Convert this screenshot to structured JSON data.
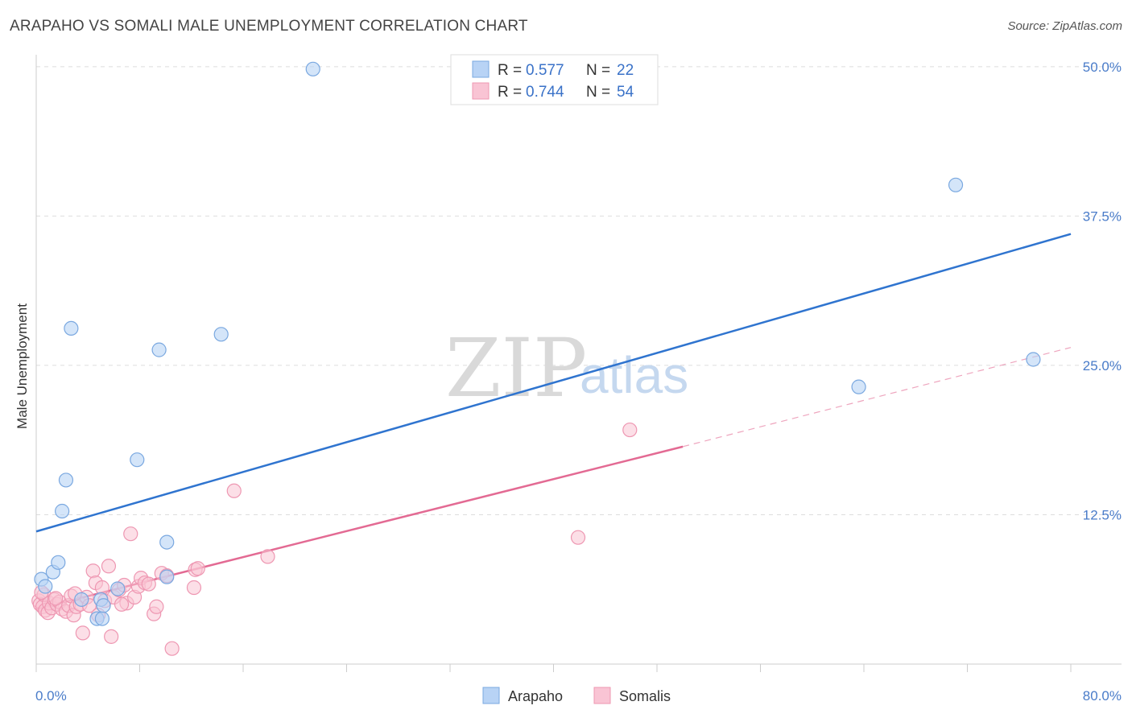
{
  "title": "ARAPAHO VS SOMALI MALE UNEMPLOYMENT CORRELATION CHART",
  "source": "Source: ZipAtlas.com",
  "colors": {
    "arapaho_fill": "#b8d3f5",
    "arapaho_stroke": "#7aa8e0",
    "arapaho_line": "#2f74cf",
    "somalis_fill": "#f9c4d4",
    "somalis_stroke": "#ee97b2",
    "somalis_line": "#e36a93",
    "axis_label": "#4a7cc9",
    "grid": "#dddddd"
  },
  "legend": {
    "rows": [
      {
        "r_label": "R = ",
        "r_value": "0.577",
        "n_label": "N = ",
        "n_value": "22"
      },
      {
        "r_label": "R = ",
        "r_value": "0.744",
        "n_label": "N = ",
        "n_value": "54"
      }
    ]
  },
  "watermark": {
    "zip": "ZIP",
    "atlas": "atlas"
  },
  "chart_data": {
    "type": "scatter",
    "title": "ARAPAHO VS SOMALI MALE UNEMPLOYMENT CORRELATION CHART",
    "xlabel": "",
    "ylabel": "Male Unemployment",
    "xlim": [
      0,
      80
    ],
    "ylim": [
      0,
      51
    ],
    "x_tick_labels": [
      "0.0%",
      "80.0%"
    ],
    "y_ticks": [
      12.5,
      25.0,
      37.5,
      50.0
    ],
    "y_tick_labels": [
      "12.5%",
      "25.0%",
      "37.5%",
      "50.0%"
    ],
    "grid": true,
    "series": [
      {
        "name": "Arapaho",
        "r": 0.577,
        "n": 22,
        "points": [
          [
            0.4,
            7.1
          ],
          [
            0.7,
            6.5
          ],
          [
            1.3,
            7.7
          ],
          [
            1.7,
            8.5
          ],
          [
            2.0,
            12.8
          ],
          [
            2.3,
            15.4
          ],
          [
            2.7,
            28.1
          ],
          [
            3.5,
            5.4
          ],
          [
            4.7,
            3.8
          ],
          [
            5.0,
            5.4
          ],
          [
            5.1,
            3.8
          ],
          [
            5.2,
            4.9
          ],
          [
            6.3,
            6.3
          ],
          [
            7.8,
            17.1
          ],
          [
            9.5,
            26.3
          ],
          [
            10.1,
            10.2
          ],
          [
            10.1,
            7.3
          ],
          [
            14.3,
            27.6
          ],
          [
            21.4,
            49.8
          ],
          [
            63.6,
            23.2
          ],
          [
            71.1,
            40.1
          ],
          [
            77.1,
            25.5
          ]
        ],
        "trend": {
          "x": [
            0,
            80
          ],
          "y": [
            11.1,
            36.0
          ]
        }
      },
      {
        "name": "Somalis",
        "r": 0.744,
        "n": 54,
        "points": [
          [
            0.2,
            5.3
          ],
          [
            0.3,
            5.0
          ],
          [
            0.5,
            4.8
          ],
          [
            0.6,
            5.8
          ],
          [
            0.7,
            4.5
          ],
          [
            0.9,
            4.3
          ],
          [
            1.0,
            5.1
          ],
          [
            1.2,
            4.7
          ],
          [
            1.4,
            5.4
          ],
          [
            1.6,
            5.0
          ],
          [
            1.8,
            5.2
          ],
          [
            2.0,
            4.6
          ],
          [
            2.3,
            4.4
          ],
          [
            2.5,
            4.9
          ],
          [
            2.7,
            5.7
          ],
          [
            2.9,
            4.1
          ],
          [
            3.1,
            4.8
          ],
          [
            3.4,
            5.0
          ],
          [
            3.6,
            2.6
          ],
          [
            3.9,
            5.6
          ],
          [
            4.1,
            4.9
          ],
          [
            4.4,
            7.8
          ],
          [
            4.6,
            6.8
          ],
          [
            4.8,
            4.1
          ],
          [
            5.1,
            6.4
          ],
          [
            5.3,
            5.3
          ],
          [
            5.6,
            8.2
          ],
          [
            5.8,
            2.3
          ],
          [
            6.0,
            5.6
          ],
          [
            6.4,
            6.2
          ],
          [
            6.8,
            6.6
          ],
          [
            7.0,
            5.1
          ],
          [
            7.3,
            10.9
          ],
          [
            7.6,
            5.6
          ],
          [
            7.9,
            6.5
          ],
          [
            8.1,
            7.2
          ],
          [
            8.4,
            6.8
          ],
          [
            8.7,
            6.7
          ],
          [
            9.1,
            4.2
          ],
          [
            9.3,
            4.8
          ],
          [
            9.7,
            7.6
          ],
          [
            10.1,
            7.4
          ],
          [
            10.5,
            1.3
          ],
          [
            12.2,
            6.4
          ],
          [
            12.3,
            7.9
          ],
          [
            12.5,
            8.0
          ],
          [
            15.3,
            14.5
          ],
          [
            17.9,
            9.0
          ],
          [
            41.9,
            10.6
          ],
          [
            45.9,
            19.6
          ],
          [
            0.4,
            6.0
          ],
          [
            1.5,
            5.5
          ],
          [
            3.0,
            5.9
          ],
          [
            6.6,
            5.0
          ]
        ],
        "trend": {
          "x": [
            0,
            50
          ],
          "y": [
            4.6,
            18.2
          ]
        },
        "trend_dashed": {
          "x": [
            50,
            80
          ],
          "y": [
            18.2,
            26.5
          ]
        }
      }
    ]
  },
  "bottom_legend": [
    {
      "label": "Arapaho"
    },
    {
      "label": "Somalis"
    }
  ]
}
